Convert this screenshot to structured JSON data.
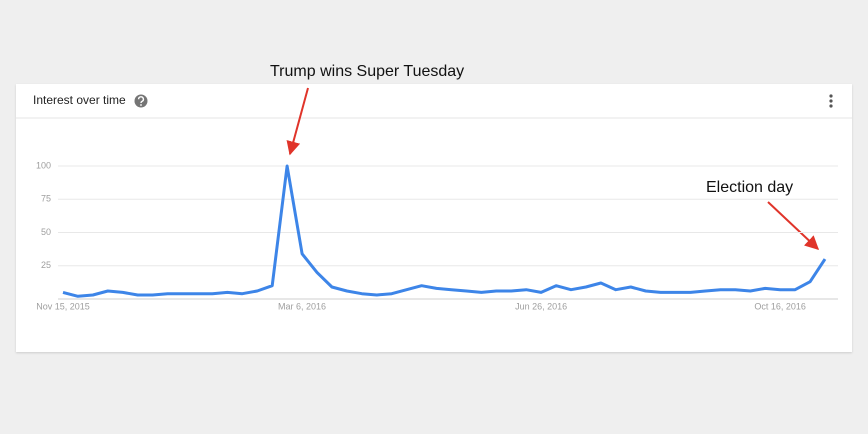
{
  "chart_data": {
    "type": "line",
    "title": "Interest over time",
    "color": "#3d85e8",
    "grid": true,
    "categories": [
      "Nov 15, 2015",
      null,
      null,
      null,
      null,
      null,
      null,
      null,
      null,
      null,
      null,
      null,
      null,
      null,
      null,
      null,
      "Mar 6, 2016",
      null,
      null,
      null,
      null,
      null,
      null,
      null,
      null,
      null,
      null,
      null,
      null,
      null,
      null,
      null,
      "Jun 26, 2016",
      null,
      null,
      null,
      null,
      null,
      null,
      null,
      null,
      null,
      null,
      null,
      null,
      null,
      null,
      null,
      "Oct 16, 2016",
      null,
      null,
      null
    ],
    "values": [
      5,
      2,
      3,
      6,
      5,
      3,
      3,
      4,
      4,
      4,
      4,
      5,
      4,
      6,
      10,
      100,
      34,
      20,
      9,
      6,
      4,
      3,
      4,
      7,
      10,
      8,
      7,
      6,
      5,
      6,
      6,
      7,
      5,
      10,
      7,
      9,
      12,
      7,
      9,
      6,
      5,
      5,
      5,
      6,
      7,
      7,
      6,
      8,
      7,
      7,
      13,
      30
    ],
    "ylim": [
      0,
      100
    ],
    "yticks": [
      25,
      50,
      75,
      100
    ],
    "annotations": [
      {
        "text": "Trump wins Super Tuesday",
        "index": 15
      },
      {
        "text": "Election day",
        "index": 51
      }
    ]
  }
}
